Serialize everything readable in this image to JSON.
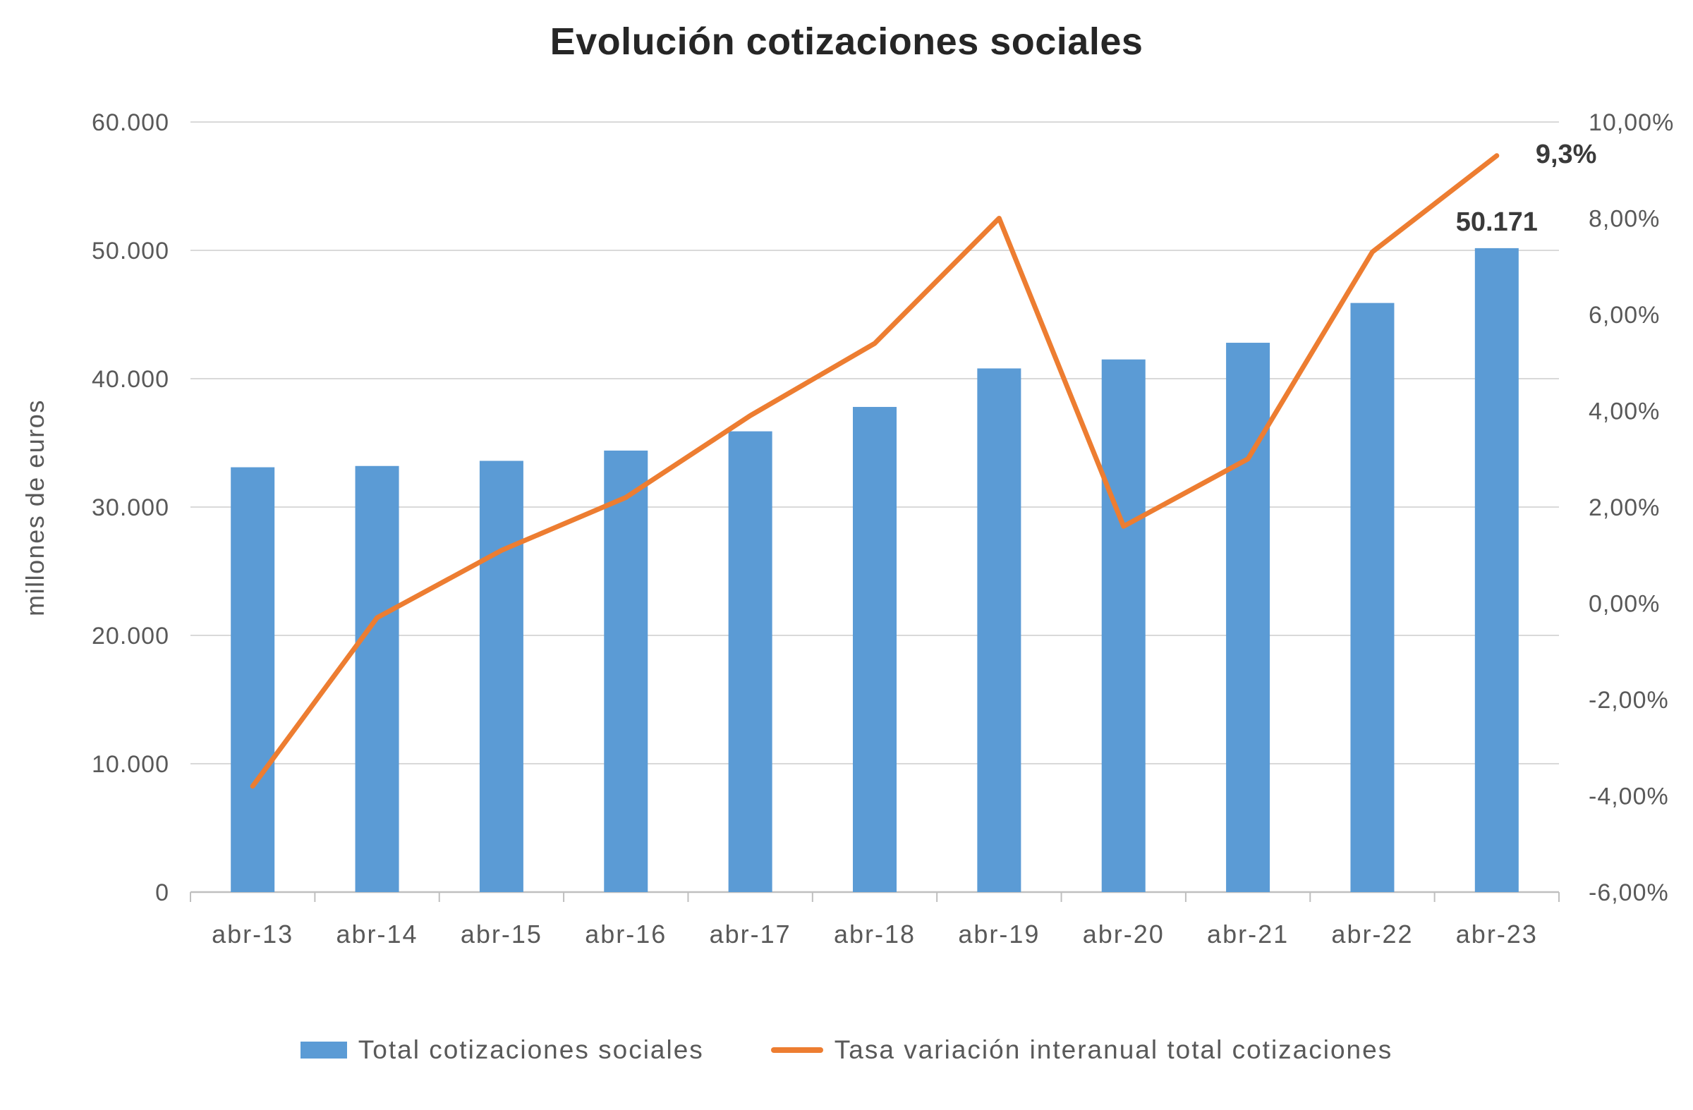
{
  "title": "Evolución cotizaciones sociales",
  "legend": [
    {
      "label": "Total cotizaciones sociales",
      "type": "bar",
      "color": "#5B9BD5"
    },
    {
      "label": "Tasa variación interanual total cotizaciones",
      "type": "line",
      "color": "#ED7D31"
    }
  ],
  "colors": {
    "bar": "#5B9BD5",
    "line": "#ED7D31",
    "gridline": "#D9D9D9",
    "axis_line": "#BFBFBF",
    "axis_text": "#595959",
    "title_text": "#262626",
    "annotation_text": "#3A3A3A",
    "background": "#FFFFFF"
  },
  "chart_data": {
    "type": "bar",
    "subtype": "bar+line combo, dual axis",
    "title": "Evolución cotizaciones sociales",
    "categories": [
      "abr-13",
      "abr-14",
      "abr-15",
      "abr-16",
      "abr-17",
      "abr-18",
      "abr-19",
      "abr-20",
      "abr-21",
      "abr-22",
      "abr-23"
    ],
    "series": [
      {
        "name": "Total cotizaciones sociales",
        "type": "bar",
        "axis": "left",
        "color": "#5B9BD5",
        "values": [
          33100,
          33200,
          33600,
          34400,
          35900,
          37800,
          40800,
          41500,
          42800,
          45900,
          50171
        ]
      },
      {
        "name": "Tasa variación interanual total cotizaciones",
        "type": "line",
        "axis": "right",
        "color": "#ED7D31",
        "values": [
          -3.8,
          -0.3,
          1.1,
          2.2,
          3.9,
          5.4,
          8.0,
          1.6,
          3.0,
          7.3,
          9.3
        ]
      }
    ],
    "left_axis": {
      "title": "millones de euros",
      "min": 0,
      "max": 60000,
      "ticks": [
        0,
        10000,
        20000,
        30000,
        40000,
        50000,
        60000
      ],
      "tick_labels": [
        "0",
        "10.000",
        "20.000",
        "30.000",
        "40.000",
        "50.000",
        "60.000"
      ]
    },
    "right_axis": {
      "min": -6,
      "max": 10,
      "ticks": [
        -6,
        -4,
        -2,
        0,
        2,
        4,
        6,
        8,
        10
      ],
      "tick_labels": [
        "-6,00%",
        "-4,00%",
        "-2,00%",
        "0,00%",
        "2,00%",
        "4,00%",
        "6,00%",
        "8,00%",
        "10,00%"
      ]
    },
    "grid": "horizontal",
    "legend_position": "bottom",
    "annotations": [
      {
        "text": "50.171",
        "series": 0,
        "index": 10
      },
      {
        "text": "9,3%",
        "series": 1,
        "index": 10
      }
    ]
  }
}
